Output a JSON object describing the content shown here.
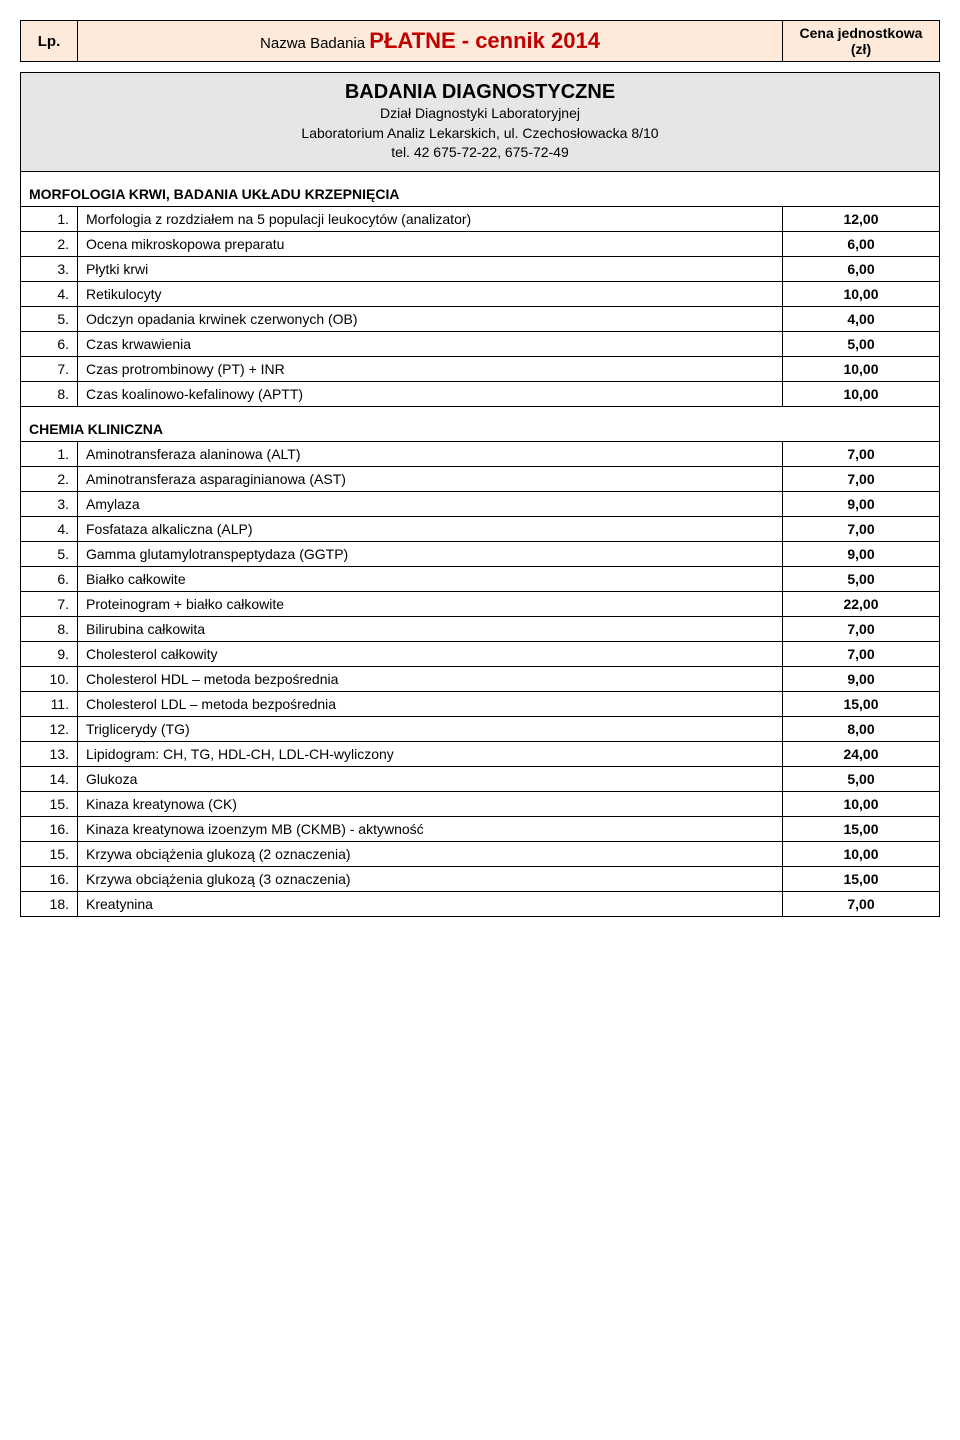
{
  "header": {
    "lp": "Lp.",
    "title_prefix": "Nazwa Badania ",
    "title_main": "PŁATNE - cennik 2014",
    "price_head_l1": "Cena jednostkowa",
    "price_head_l2": "(zł)"
  },
  "diag_box": {
    "title": "BADANIA DIAGNOSTYCZNE",
    "line1": "Dział Diagnostyki Laboratoryjnej",
    "line2": "Laboratorium Analiz Lekarskich, ul. Czechosłowacka 8/10",
    "line3": "tel. 42 675-72-22, 675-72-49"
  },
  "sections": [
    {
      "heading": "MORFOLOGIA KRWI, BADANIA UKŁADU KRZEPNIĘCIA",
      "rows": [
        {
          "n": "1.",
          "name": "Morfologia z rozdziałem na 5 populacji leukocytów (analizator)",
          "price": "12,00"
        },
        {
          "n": "2.",
          "name": "Ocena mikroskopowa preparatu",
          "price": "6,00"
        },
        {
          "n": "3.",
          "name": "Płytki krwi",
          "price": "6,00"
        },
        {
          "n": "4.",
          "name": "Retikulocyty",
          "price": "10,00"
        },
        {
          "n": "5.",
          "name": "Odczyn opadania krwinek czerwonych (OB)",
          "price": "4,00"
        },
        {
          "n": "6.",
          "name": "Czas krwawienia",
          "price": "5,00"
        },
        {
          "n": "7.",
          "name": "Czas protrombinowy (PT) + INR",
          "price": "10,00"
        },
        {
          "n": "8.",
          "name": "Czas koalinowo-kefalinowy (APTT)",
          "price": "10,00"
        }
      ]
    },
    {
      "heading": "CHEMIA KLINICZNA",
      "rows": [
        {
          "n": "1.",
          "name": "Aminotransferaza alaninowa (ALT)",
          "price": "7,00"
        },
        {
          "n": "2.",
          "name": "Aminotransferaza asparaginianowa (AST)",
          "price": "7,00"
        },
        {
          "n": "3.",
          "name": "Amylaza",
          "price": "9,00"
        },
        {
          "n": "4.",
          "name": "Fosfataza alkaliczna (ALP)",
          "price": "7,00"
        },
        {
          "n": "5.",
          "name": "Gamma glutamylotranspeptydaza (GGTP)",
          "price": "9,00"
        },
        {
          "n": "6.",
          "name": "Białko całkowite",
          "price": "5,00"
        },
        {
          "n": "7.",
          "name": "Proteinogram + białko całkowite",
          "price": "22,00"
        },
        {
          "n": "8.",
          "name": "Bilirubina całkowita",
          "price": "7,00"
        },
        {
          "n": "9.",
          "name": "Cholesterol całkowity",
          "price": "7,00"
        },
        {
          "n": "10.",
          "name": "Cholesterol HDL – metoda bezpośrednia",
          "price": "9,00"
        },
        {
          "n": "11.",
          "name": "Cholesterol LDL – metoda bezpośrednia",
          "price": "15,00"
        },
        {
          "n": "12.",
          "name": "Triglicerydy (TG)",
          "price": "8,00"
        },
        {
          "n": "13.",
          "name": "Lipidogram: CH, TG, HDL-CH, LDL-CH-wyliczony",
          "price": "24,00"
        },
        {
          "n": "14.",
          "name": "Glukoza",
          "price": "5,00"
        },
        {
          "n": "15.",
          "name": "Kinaza kreatynowa (CK)",
          "price": "10,00"
        },
        {
          "n": "16.",
          "name": "Kinaza kreatynowa izoenzym MB (CKMB) - aktywność",
          "price": "15,00"
        },
        {
          "n": "15.",
          "name": "Krzywa obciążenia glukozą (2 oznaczenia)",
          "price": "10,00"
        },
        {
          "n": "16.",
          "name": "Krzywa obciążenia glukozą (3 oznaczenia)",
          "price": "15,00"
        },
        {
          "n": "18.",
          "name": "Kreatynina",
          "price": "7,00"
        }
      ]
    }
  ],
  "colors": {
    "header_bg": "#fdeada",
    "diag_bg": "#e6e6e6",
    "title_red": "#c00000",
    "border": "#000000"
  }
}
